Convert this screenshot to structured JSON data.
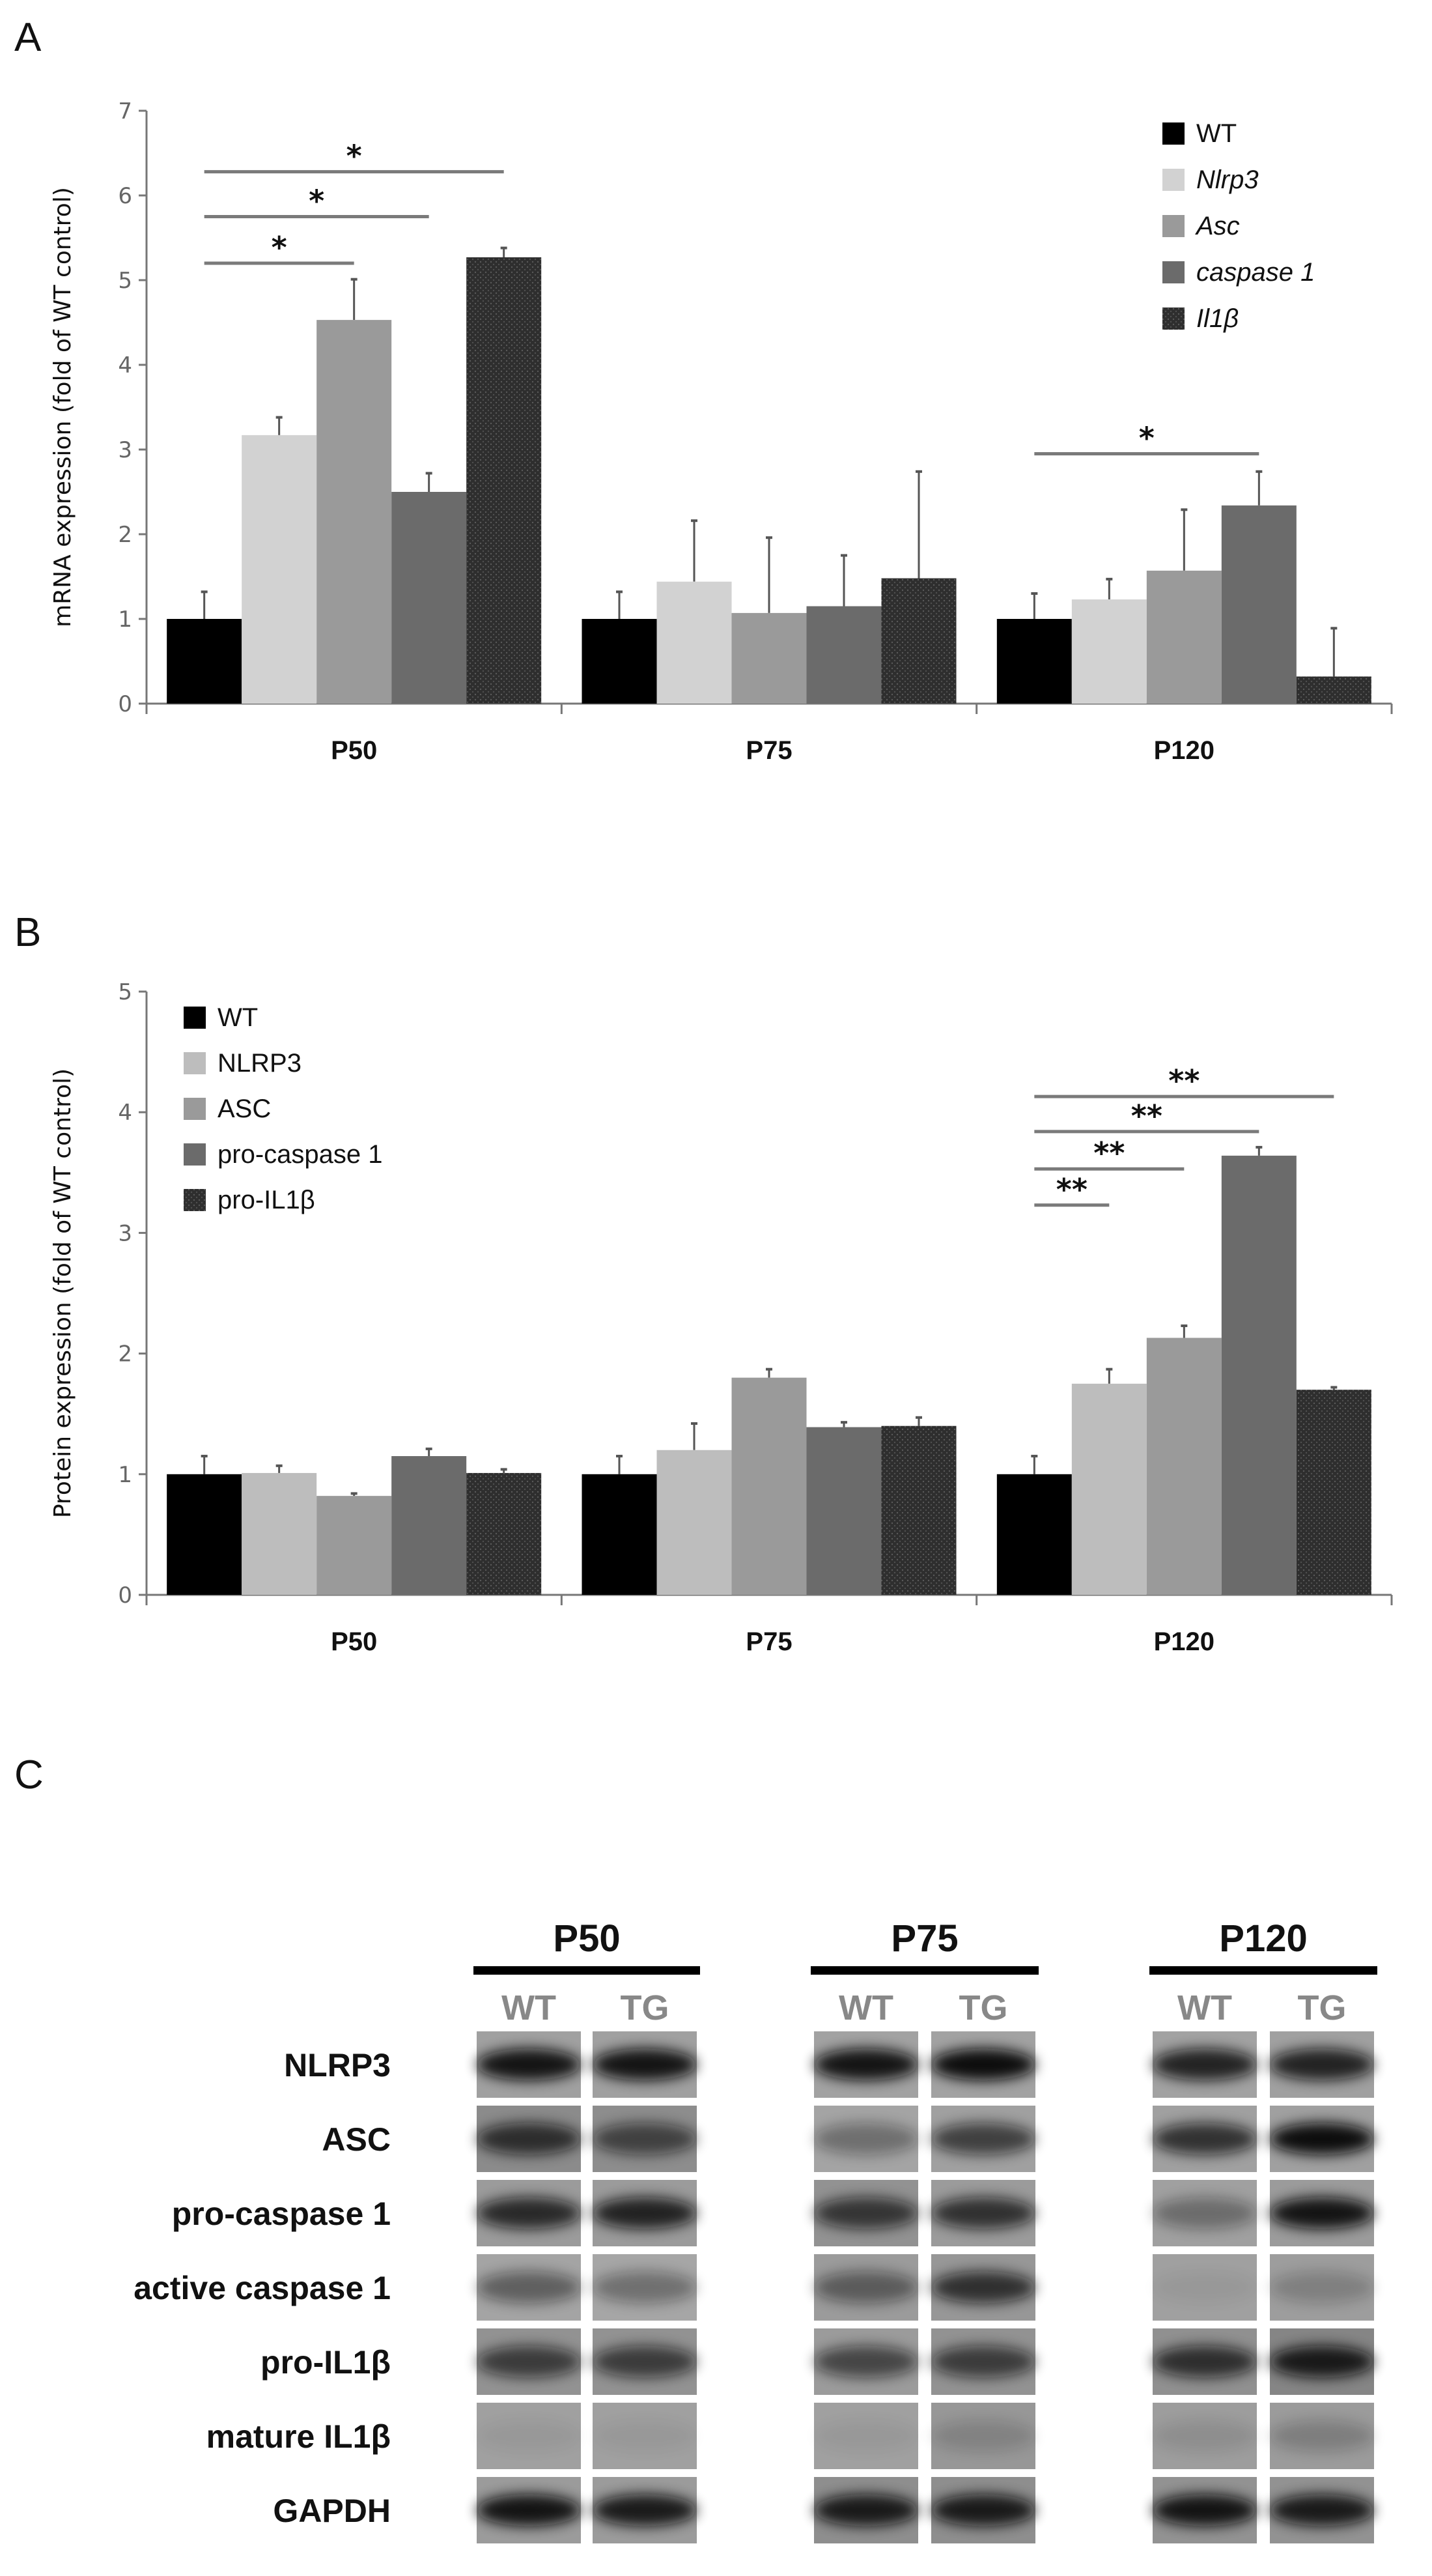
{
  "colors": {
    "WT": "#000000",
    "s1A": "#d2d2d2",
    "s1B": "#bdbdbd",
    "s2": "#9a9a9a",
    "s3": "#6b6b6b",
    "s4": "#303030",
    "sig": "#7a7a7a"
  },
  "chart_data": [
    {
      "panel": "A",
      "type": "bar",
      "ylabel": "mRNA expression (fold of WT control)",
      "ylim": [
        0,
        7
      ],
      "yticks": [
        0,
        1,
        2,
        3,
        4,
        5,
        6,
        7
      ],
      "categories": [
        "P50",
        "P75",
        "P120"
      ],
      "legend_position": "top-right",
      "series": [
        {
          "name": "WT",
          "italic": false,
          "values": [
            1.0,
            1.0,
            1.0
          ],
          "err_top": [
            1.32,
            1.32,
            1.3
          ]
        },
        {
          "name": "Nlrp3",
          "italic": true,
          "values": [
            3.17,
            1.44,
            1.23
          ],
          "err_top": [
            3.38,
            2.16,
            1.47
          ]
        },
        {
          "name": "Asc",
          "italic": true,
          "values": [
            4.53,
            1.07,
            1.57
          ],
          "err_top": [
            5.01,
            1.96,
            2.29
          ]
        },
        {
          "name": "caspase 1",
          "italic": true,
          "values": [
            2.5,
            1.15,
            2.34
          ],
          "err_top": [
            2.72,
            1.75,
            2.74
          ]
        },
        {
          "name": "Il1β",
          "italic": true,
          "values": [
            5.27,
            1.48,
            0.32
          ],
          "err_top": [
            5.38,
            2.74,
            0.89
          ]
        }
      ],
      "significance": [
        {
          "group": 0,
          "from": 0,
          "to": 2,
          "y": 5.2,
          "label": "*"
        },
        {
          "group": 0,
          "from": 0,
          "to": 3,
          "y": 5.75,
          "label": "*"
        },
        {
          "group": 0,
          "from": 0,
          "to": 4,
          "y": 6.28,
          "label": "*"
        },
        {
          "group": 2,
          "from": 0,
          "to": 3,
          "y": 2.95,
          "label": "*"
        }
      ]
    },
    {
      "panel": "B",
      "type": "bar",
      "ylabel": "Protein expression (fold of WT control)",
      "ylim": [
        0,
        5
      ],
      "yticks": [
        0,
        1,
        2,
        3,
        4,
        5
      ],
      "categories": [
        "P50",
        "P75",
        "P120"
      ],
      "legend_position": "top-left",
      "series": [
        {
          "name": "WT",
          "italic": false,
          "values": [
            1.0,
            1.0,
            1.0
          ],
          "err_top": [
            1.15,
            1.15,
            1.15
          ]
        },
        {
          "name": "NLRP3",
          "italic": false,
          "values": [
            1.01,
            1.2,
            1.75
          ],
          "err_top": [
            1.07,
            1.42,
            1.87
          ]
        },
        {
          "name": "ASC",
          "italic": false,
          "values": [
            0.82,
            1.8,
            2.13
          ],
          "err_top": [
            0.84,
            1.87,
            2.23
          ]
        },
        {
          "name": "pro-caspase 1",
          "italic": false,
          "values": [
            1.15,
            1.39,
            3.64
          ],
          "err_top": [
            1.21,
            1.43,
            3.71
          ]
        },
        {
          "name": "pro-IL1β",
          "italic": false,
          "values": [
            1.01,
            1.4,
            1.7
          ],
          "err_top": [
            1.04,
            1.47,
            1.72
          ]
        }
      ],
      "significance": [
        {
          "group": 2,
          "from": 0,
          "to": 1,
          "y": 3.23,
          "label": "**"
        },
        {
          "group": 2,
          "from": 0,
          "to": 2,
          "y": 3.53,
          "label": "**"
        },
        {
          "group": 2,
          "from": 0,
          "to": 3,
          "y": 3.84,
          "label": "**"
        },
        {
          "group": 2,
          "from": 0,
          "to": 4,
          "y": 4.13,
          "label": "**"
        }
      ]
    }
  ],
  "blot": {
    "panel": "C",
    "groups": [
      "P50",
      "P75",
      "P120"
    ],
    "lanes": [
      "WT",
      "TG"
    ],
    "rows": [
      {
        "label": "NLRP3",
        "bg": [
          0.45,
          0.45,
          0.42,
          0.42,
          0.42,
          0.45
        ],
        "band": [
          0.95,
          0.95,
          0.95,
          1.0,
          0.85,
          0.85
        ]
      },
      {
        "label": "ASC",
        "bg": [
          0.68,
          0.66,
          0.4,
          0.45,
          0.45,
          0.45
        ],
        "band": [
          0.75,
          0.6,
          0.35,
          0.65,
          0.75,
          1.0
        ]
      },
      {
        "label": "pro-caspase 1",
        "bg": [
          0.5,
          0.5,
          0.6,
          0.5,
          0.45,
          0.5
        ],
        "band": [
          0.8,
          0.85,
          0.7,
          0.75,
          0.35,
          0.95
        ]
      },
      {
        "label": "active caspase 1",
        "bg": [
          0.4,
          0.38,
          0.5,
          0.55,
          0.45,
          0.48
        ],
        "band": [
          0.45,
          0.35,
          0.45,
          0.75,
          0.05,
          0.2
        ]
      },
      {
        "label": "pro-IL1β",
        "bg": [
          0.6,
          0.6,
          0.5,
          0.6,
          0.62,
          0.75
        ],
        "band": [
          0.65,
          0.65,
          0.6,
          0.65,
          0.75,
          0.9
        ]
      },
      {
        "label": "mature IL1β",
        "bg": [
          0.45,
          0.45,
          0.45,
          0.55,
          0.48,
          0.5
        ],
        "band": [
          0.05,
          0.05,
          0.05,
          0.15,
          0.1,
          0.2
        ]
      },
      {
        "label": "GAPDH",
        "bg": [
          0.5,
          0.5,
          0.65,
          0.65,
          0.6,
          0.6
        ],
        "band": [
          0.95,
          0.9,
          0.9,
          0.9,
          0.95,
          0.9
        ]
      }
    ]
  }
}
